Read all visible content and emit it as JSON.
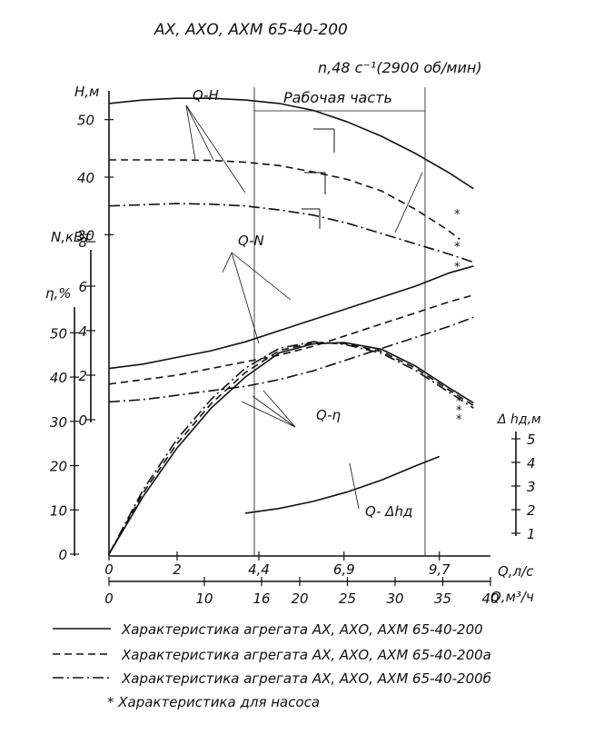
{
  "title": "АХ, АХО, АХМ 65-40-200",
  "speed_label": "n,48 с⁻¹(2900 об/мин)",
  "work_zone_label": "Рабочая часть",
  "curve_labels": {
    "qh": "Q-H",
    "qn": "Q-N",
    "qeta": "Q-η",
    "qdh": "Q- Δhд"
  },
  "footnote_star": "*",
  "legend": [
    {
      "style": "solid",
      "text": "Характеристика агрегата АХ, АХО, АХМ 65-40-200"
    },
    {
      "style": "dashed",
      "text": "Характеристика агрегата АХ, АХО, АХМ 65-40-200а"
    },
    {
      "style": "dashdot",
      "text": "Характеристика агрегата АХ, АХО, АХМ 65-40-200б"
    }
  ],
  "legend_note": "* Характеристика для насоса",
  "chart_data": {
    "type": "line",
    "x_axis": {
      "label": "Q,л/с",
      "range": [
        0,
        11.2
      ],
      "ticks": [
        "0",
        "2",
        "4,4",
        "6,9",
        "9,7"
      ],
      "tick_values": [
        0,
        2,
        4.4,
        6.9,
        9.7
      ]
    },
    "x2_axis": {
      "label": "Q,м³/ч",
      "range": [
        0,
        40
      ],
      "ticks": [
        "0",
        "10",
        "16",
        "20",
        "25",
        "30",
        "35",
        "40"
      ],
      "tick_values": [
        0,
        10,
        16,
        20,
        25,
        30,
        35,
        40
      ]
    },
    "axes": {
      "H": {
        "label": "H,м",
        "range": [
          25,
          55
        ],
        "ticks": [
          "50",
          "40",
          "30"
        ],
        "tick_values": [
          50,
          40,
          30
        ]
      },
      "N": {
        "label": "N,кВт",
        "range": [
          0,
          8
        ],
        "ticks": [
          "8",
          "6",
          "4",
          "2",
          "0"
        ],
        "tick_values": [
          8,
          6,
          4,
          2,
          0
        ]
      },
      "eta": {
        "label": "η,%",
        "range": [
          0,
          55
        ],
        "ticks": [
          "50",
          "40",
          "30",
          "20",
          "10",
          "0"
        ],
        "tick_values": [
          50,
          40,
          30,
          20,
          10,
          0
        ]
      },
      "dh": {
        "label": "Δ hд,м",
        "range": [
          0.5,
          5.5
        ],
        "ticks": [
          "5",
          "4",
          "3",
          "2",
          "1"
        ],
        "tick_values": [
          5,
          4,
          3,
          2,
          1
        ]
      }
    },
    "series": [
      {
        "axis": "H",
        "style": "solid",
        "x": [
          0,
          1,
          2,
          3,
          4,
          5,
          6,
          7,
          8,
          9,
          10,
          10.7
        ],
        "y": [
          52.8,
          53.4,
          53.7,
          53.7,
          53.4,
          52.8,
          51.6,
          49.6,
          47.1,
          44.1,
          40.7,
          38.0
        ]
      },
      {
        "axis": "H",
        "style": "dashed",
        "x": [
          0,
          1,
          2,
          3,
          4,
          5,
          6,
          7,
          8,
          9,
          9.9,
          10.3
        ],
        "y": [
          43.0,
          43.0,
          43.0,
          42.9,
          42.6,
          42.0,
          40.9,
          39.6,
          37.6,
          34.4,
          31.0,
          29.2
        ]
      },
      {
        "axis": "H",
        "style": "dashdot",
        "x": [
          0,
          1,
          2,
          3,
          4,
          5,
          6,
          7,
          8,
          9,
          10,
          10.7
        ],
        "y": [
          35.0,
          35.2,
          35.4,
          35.3,
          35.0,
          34.3,
          33.4,
          32.0,
          30.2,
          28.4,
          26.6,
          25.2
        ]
      },
      {
        "axis": "N",
        "style": "solid",
        "x": [
          0,
          1,
          2,
          3,
          4,
          5,
          6,
          7,
          8,
          9,
          10,
          10.7
        ],
        "y": [
          2.3,
          2.5,
          2.8,
          3.1,
          3.5,
          4.0,
          4.5,
          5.0,
          5.5,
          6.0,
          6.6,
          6.9
        ]
      },
      {
        "axis": "N",
        "style": "dashed",
        "x": [
          0,
          1,
          2,
          3,
          4,
          5,
          6,
          7,
          8,
          9,
          10,
          10.7
        ],
        "y": [
          1.6,
          1.8,
          2.0,
          2.3,
          2.6,
          2.9,
          3.3,
          3.8,
          4.3,
          4.8,
          5.3,
          5.6
        ]
      },
      {
        "axis": "N",
        "style": "dashdot",
        "x": [
          0,
          1,
          2,
          3,
          4,
          5,
          6,
          7,
          8,
          9,
          10,
          10.7
        ],
        "y": [
          0.8,
          0.9,
          1.1,
          1.3,
          1.5,
          1.8,
          2.2,
          2.7,
          3.2,
          3.7,
          4.2,
          4.6
        ]
      },
      {
        "axis": "eta",
        "style": "solid",
        "x": [
          0,
          1,
          2,
          3,
          4,
          5,
          6,
          6.9,
          8,
          9,
          10,
          10.7
        ],
        "y": [
          0,
          13,
          24,
          33,
          40,
          45.5,
          47.5,
          47.8,
          46.3,
          42.5,
          37.5,
          34.2
        ]
      },
      {
        "axis": "eta",
        "style": "dashed",
        "x": [
          0,
          1,
          2,
          3,
          4,
          5,
          6,
          6.9,
          8,
          9,
          10,
          10.7
        ],
        "y": [
          0,
          13.8,
          25,
          34,
          41,
          46,
          47.8,
          47.6,
          45.8,
          42,
          37,
          33.6
        ]
      },
      {
        "axis": "eta",
        "style": "dashdot",
        "x": [
          0,
          1,
          2,
          3,
          4,
          5,
          6,
          6.9,
          8,
          9,
          10,
          10.7
        ],
        "y": [
          0,
          14.5,
          26,
          35,
          42,
          46.5,
          48,
          47.4,
          45.4,
          41.5,
          36.5,
          33.0
        ]
      },
      {
        "axis": "dh",
        "style": "solid",
        "x": [
          4,
          5,
          6,
          7,
          8,
          9,
          9.7
        ],
        "y": [
          1.85,
          2.05,
          2.35,
          2.75,
          3.25,
          3.85,
          4.25
        ]
      }
    ],
    "pump_markers": [
      "*",
      "*",
      "*",
      "*",
      "*",
      "*"
    ]
  }
}
